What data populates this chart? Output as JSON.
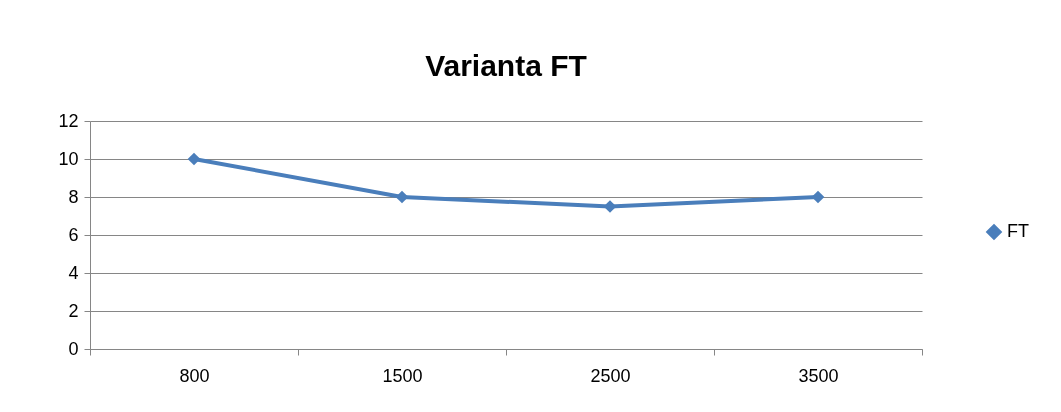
{
  "chart_data": {
    "type": "line",
    "title": "Varianta FT",
    "categories": [
      "800",
      "1500",
      "2500",
      "3500"
    ],
    "series": [
      {
        "name": "FT",
        "color": "#4a7ebb",
        "values": [
          10,
          8,
          7.5,
          8
        ]
      }
    ],
    "ylim": [
      0,
      12
    ],
    "yticks": [
      0,
      2,
      4,
      6,
      8,
      10,
      12
    ],
    "grid": "y",
    "legend": "right",
    "marker": "diamond",
    "line_style": "solid"
  }
}
